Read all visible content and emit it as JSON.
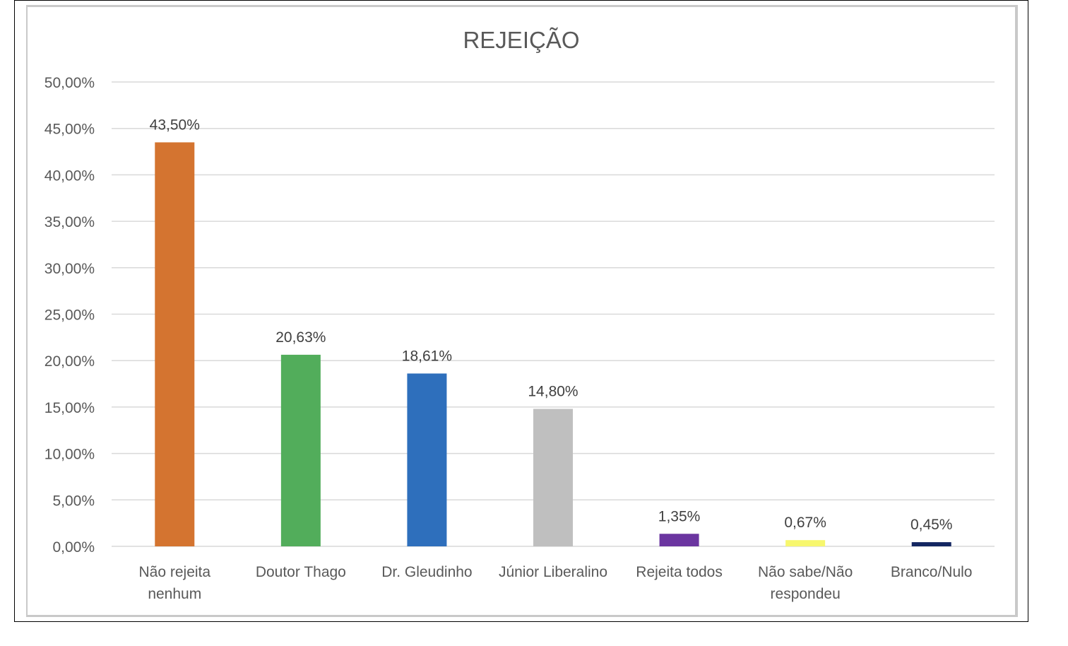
{
  "chart_data": {
    "type": "bar",
    "title": "REJEIÇÃO",
    "xlabel": "",
    "ylabel": "",
    "categories": [
      [
        "Não rejeita",
        "nenhum"
      ],
      [
        "Doutor Thago"
      ],
      [
        "Dr. Gleudinho"
      ],
      [
        "Júnior Liberalino"
      ],
      [
        "Rejeita todos"
      ],
      [
        "Não sabe/Não",
        "respondeu"
      ],
      [
        "Branco/Nulo"
      ]
    ],
    "values": [
      43.5,
      20.63,
      18.61,
      14.8,
      1.35,
      0.67,
      0.45
    ],
    "value_labels": [
      "43,50%",
      "20,63%",
      "18,61%",
      "14,80%",
      "1,35%",
      "0,67%",
      "0,45%"
    ],
    "colors": [
      "#d47430",
      "#52ad5b",
      "#2e6fbc",
      "#bfbfbf",
      "#6b35a0",
      "#f7f76e",
      "#132661"
    ],
    "ylim": [
      0,
      50
    ],
    "yticks": [
      0,
      5,
      10,
      15,
      20,
      25,
      30,
      35,
      40,
      45,
      50
    ],
    "ytick_labels": [
      "0,00%",
      "5,00%",
      "10,00%",
      "15,00%",
      "20,00%",
      "25,00%",
      "30,00%",
      "35,00%",
      "40,00%",
      "45,00%",
      "50,00%"
    ],
    "grid": true,
    "legend": "none"
  }
}
